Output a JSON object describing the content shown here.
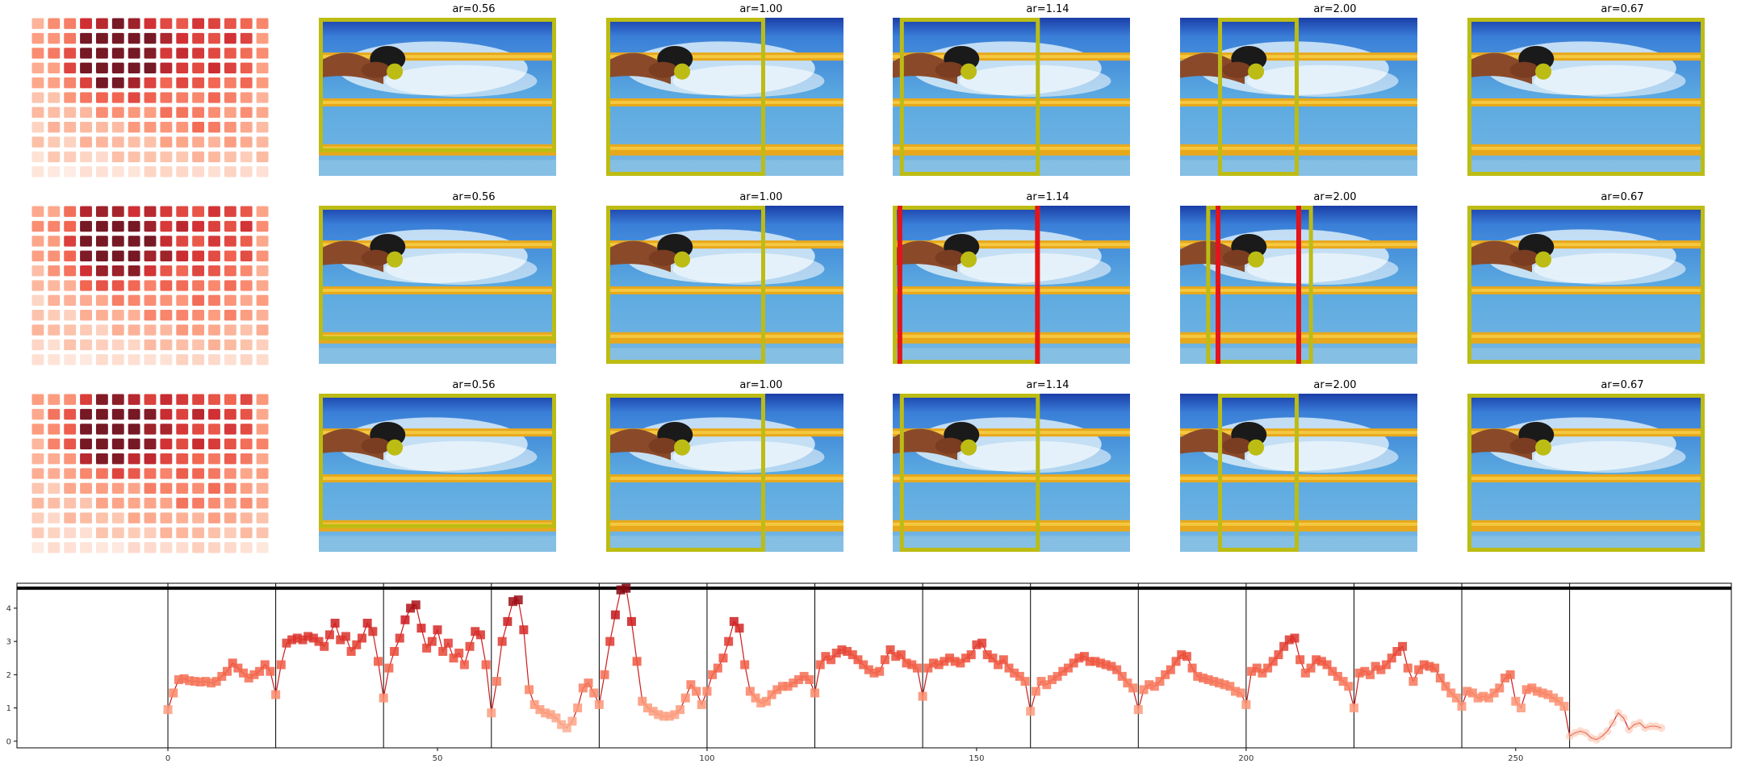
{
  "titles": [
    "ar=0.56",
    "ar=1.00",
    "ar=1.14",
    "ar=2.00",
    "ar=0.67"
  ],
  "colors": {
    "box": "#bcbc14",
    "red": "#e3141c",
    "line": "#cc1a1a",
    "frame": "#000000"
  },
  "chart_data": {
    "type": "line",
    "xlim": [
      -28,
      290
    ],
    "ylim": [
      -0.2,
      4.75
    ],
    "x_ticks": [
      0,
      50,
      100,
      150,
      200,
      250
    ],
    "y_ticks": [
      0,
      1,
      2,
      3,
      4
    ],
    "vlines": [
      0,
      20,
      40,
      60,
      80,
      100,
      120,
      140,
      160,
      180,
      200,
      220,
      240,
      260
    ],
    "hline": 4.6,
    "x_start": 0,
    "values": [
      0.95,
      1.45,
      1.85,
      1.88,
      1.82,
      1.8,
      1.78,
      1.8,
      1.75,
      1.8,
      1.95,
      2.1,
      2.35,
      2.2,
      2.05,
      1.9,
      2.0,
      2.1,
      2.3,
      2.1,
      1.4,
      2.3,
      2.95,
      3.05,
      3.1,
      3.05,
      3.15,
      3.1,
      3.0,
      2.85,
      3.2,
      3.55,
      3.05,
      3.15,
      2.7,
      2.9,
      3.1,
      3.55,
      3.3,
      2.4,
      1.3,
      2.2,
      2.7,
      3.1,
      3.65,
      4.0,
      4.1,
      3.4,
      2.8,
      3.0,
      3.35,
      2.7,
      2.95,
      2.5,
      2.65,
      2.3,
      2.85,
      3.3,
      3.2,
      2.3,
      0.85,
      1.8,
      3.0,
      3.6,
      4.2,
      4.25,
      3.35,
      1.55,
      1.1,
      0.95,
      0.85,
      0.8,
      0.7,
      0.5,
      0.4,
      0.6,
      1.0,
      1.6,
      1.75,
      1.45,
      1.1,
      2.0,
      3.0,
      3.8,
      4.55,
      4.6,
      3.6,
      2.4,
      1.2,
      1.0,
      0.9,
      0.8,
      0.75,
      0.75,
      0.8,
      0.95,
      1.3,
      1.7,
      1.5,
      1.1,
      1.5,
      2.0,
      2.2,
      2.5,
      3.0,
      3.6,
      3.4,
      2.3,
      1.5,
      1.3,
      1.15,
      1.2,
      1.4,
      1.55,
      1.65,
      1.65,
      1.75,
      1.85,
      1.95,
      1.85,
      1.45,
      2.3,
      2.55,
      2.45,
      2.65,
      2.75,
      2.7,
      2.6,
      2.45,
      2.3,
      2.15,
      2.05,
      2.1,
      2.45,
      2.75,
      2.55,
      2.6,
      2.35,
      2.3,
      2.2,
      1.35,
      2.2,
      2.35,
      2.3,
      2.4,
      2.5,
      2.4,
      2.35,
      2.5,
      2.6,
      2.9,
      2.95,
      2.6,
      2.5,
      2.3,
      2.45,
      2.2,
      2.05,
      1.95,
      1.8,
      0.9,
      1.5,
      1.8,
      1.7,
      1.85,
      1.95,
      2.1,
      2.2,
      2.35,
      2.5,
      2.55,
      2.4,
      2.4,
      2.35,
      2.3,
      2.25,
      2.15,
      1.95,
      1.75,
      1.6,
      0.95,
      1.55,
      1.7,
      1.65,
      1.8,
      2.0,
      2.15,
      2.4,
      2.6,
      2.55,
      2.2,
      1.95,
      1.9,
      1.85,
      1.8,
      1.75,
      1.7,
      1.65,
      1.5,
      1.45,
      1.1,
      2.1,
      2.2,
      2.05,
      2.2,
      2.4,
      2.6,
      2.85,
      3.05,
      3.1,
      2.45,
      2.05,
      2.2,
      2.45,
      2.4,
      2.3,
      2.1,
      1.95,
      1.8,
      1.65,
      1.0,
      2.05,
      2.1,
      2.0,
      2.25,
      2.15,
      2.3,
      2.5,
      2.7,
      2.85,
      2.2,
      1.8,
      2.15,
      2.3,
      2.25,
      2.2,
      1.9,
      1.65,
      1.45,
      1.3,
      1.05,
      1.5,
      1.45,
      1.3,
      1.35,
      1.3,
      1.45,
      1.6,
      1.9,
      2.0,
      1.2,
      1.0,
      1.55,
      1.6,
      1.5,
      1.45,
      1.4,
      1.3,
      1.2,
      1.05,
      0.15,
      0.25,
      0.3,
      0.25,
      0.1,
      0.05,
      0.15,
      0.3,
      0.55,
      0.85,
      0.7,
      0.35,
      0.5,
      0.55,
      0.4,
      0.45,
      0.45,
      0.4
    ]
  }
}
